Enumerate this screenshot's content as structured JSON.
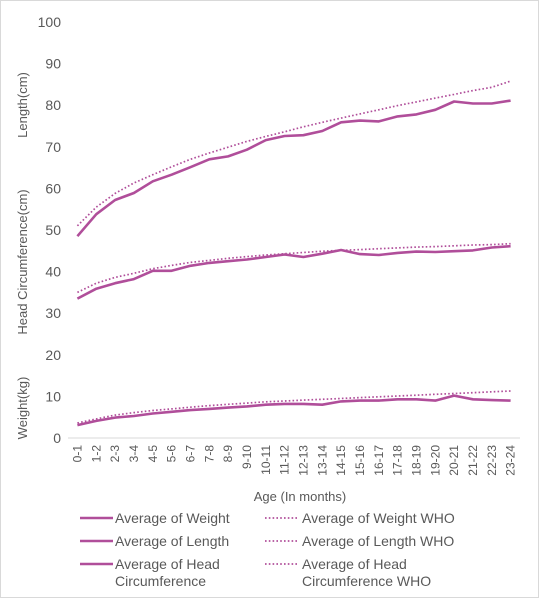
{
  "chart_data": {
    "type": "line",
    "categories": [
      "0-1",
      "1-2",
      "2-3",
      "3-4",
      "4-5",
      "5-6",
      "6-7",
      "7-8",
      "8-9",
      "9-10",
      "10-11",
      "11-12",
      "12-13",
      "13-14",
      "14-15",
      "15-16",
      "16-17",
      "17-18",
      "18-19",
      "19-20",
      "20-21",
      "21-22",
      "22-23",
      "23-24"
    ],
    "ylim": [
      0,
      100
    ],
    "yticks": [
      "0",
      "10",
      "20",
      "30",
      "40",
      "50",
      "60",
      "70",
      "80",
      "90",
      "100"
    ],
    "xlabel": "Age (In months)",
    "ylabels": [
      "Weight(kg)",
      "Head Circumference(cm)",
      "Length(cm)"
    ],
    "grid": false,
    "legend_position": "bottom",
    "colors": {
      "series": "#b04e9a",
      "axis_text": "#595959",
      "axis_line": "#d9d9d9"
    },
    "series": [
      {
        "name": "Average of Weight",
        "style": "solid",
        "values": [
          3.1,
          4.1,
          4.9,
          5.3,
          5.9,
          6.3,
          6.7,
          7.0,
          7.3,
          7.6,
          8.0,
          8.2,
          8.2,
          8.0,
          8.8,
          9.0,
          9.0,
          9.3,
          9.3,
          9.0,
          10.2,
          9.3,
          9.1,
          9.0
        ]
      },
      {
        "name": "Average of Weight WHO",
        "style": "dotted",
        "values": [
          3.6,
          4.6,
          5.5,
          6.1,
          6.6,
          7.0,
          7.4,
          7.8,
          8.1,
          8.4,
          8.7,
          8.9,
          9.1,
          9.3,
          9.5,
          9.7,
          9.9,
          10.1,
          10.3,
          10.5,
          10.7,
          10.9,
          11.1,
          11.3
        ]
      },
      {
        "name": "Average of Length",
        "style": "solid",
        "values": [
          48.5,
          53.8,
          57.2,
          58.9,
          61.7,
          63.3,
          65.1,
          67.0,
          67.7,
          69.3,
          71.6,
          72.6,
          72.8,
          73.8,
          75.9,
          76.3,
          76.1,
          77.3,
          77.8,
          78.9,
          80.9,
          80.4,
          80.4,
          81.1
        ]
      },
      {
        "name": "Average of Length WHO",
        "style": "dotted",
        "values": [
          51.0,
          55.5,
          58.8,
          61.3,
          63.3,
          65.2,
          67.0,
          68.5,
          69.9,
          71.3,
          72.5,
          73.6,
          74.8,
          75.9,
          76.9,
          77.9,
          78.9,
          79.9,
          80.8,
          81.7,
          82.6,
          83.5,
          84.3,
          85.8
        ]
      },
      {
        "name": "Average of Head Circumference",
        "style": "solid",
        "values": [
          33.5,
          35.9,
          37.2,
          38.2,
          40.2,
          40.2,
          41.4,
          42.1,
          42.5,
          42.9,
          43.5,
          44.1,
          43.5,
          44.3,
          45.2,
          44.2,
          44.0,
          44.5,
          44.8,
          44.7,
          44.9,
          45.1,
          45.8,
          46.1
        ]
      },
      {
        "name": "Average of Head Circumference WHO",
        "style": "dotted",
        "values": [
          35.0,
          37.2,
          38.6,
          39.6,
          40.7,
          41.5,
          42.2,
          42.7,
          43.2,
          43.6,
          44.0,
          44.3,
          44.6,
          44.9,
          45.1,
          45.3,
          45.5,
          45.7,
          45.9,
          46.0,
          46.2,
          46.4,
          46.5,
          46.7
        ]
      }
    ]
  }
}
